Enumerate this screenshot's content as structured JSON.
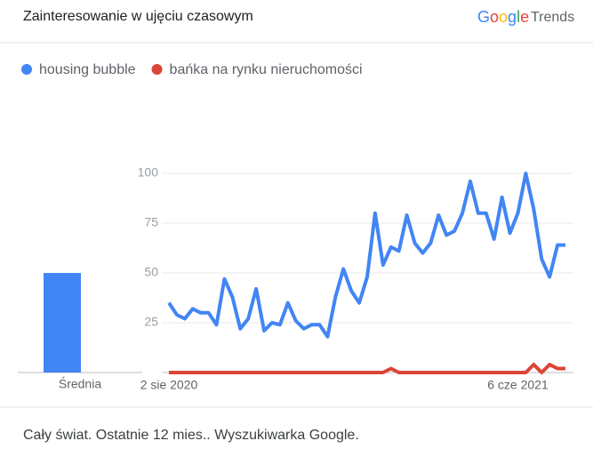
{
  "header": {
    "title": "Zainteresowanie w ujęciu czasowym",
    "brand": "Google",
    "brand_suffix": "Trends"
  },
  "chart_data": {
    "type": "line",
    "categories": [
      "2 sie 2020",
      null,
      null,
      null,
      null,
      null,
      null,
      null,
      null,
      null,
      null,
      null,
      null,
      null,
      null,
      null,
      null,
      null,
      null,
      null,
      null,
      null,
      null,
      null,
      null,
      null,
      null,
      null,
      null,
      null,
      null,
      null,
      null,
      null,
      null,
      null,
      null,
      null,
      null,
      null,
      null,
      null,
      null,
      null,
      "6 cze 2021",
      null,
      null,
      null,
      null,
      null,
      null
    ],
    "series": [
      {
        "name": "housing bubble",
        "color": "#4285f4",
        "average": 50,
        "values": [
          35,
          29,
          27,
          32,
          30,
          30,
          24,
          47,
          38,
          22,
          27,
          42,
          21,
          25,
          24,
          35,
          26,
          22,
          24,
          24,
          18,
          38,
          52,
          41,
          35,
          48,
          80,
          54,
          63,
          61,
          79,
          65,
          60,
          65,
          79,
          69,
          71,
          80,
          96,
          80,
          80,
          67,
          88,
          70,
          80,
          100,
          82,
          57,
          48,
          64,
          64
        ]
      },
      {
        "name": "bańka na rynku nieruchomości",
        "color": "#db4437",
        "average": 0,
        "values": [
          0,
          0,
          0,
          0,
          0,
          0,
          0,
          0,
          0,
          0,
          0,
          0,
          0,
          0,
          0,
          0,
          0,
          0,
          0,
          0,
          0,
          0,
          0,
          0,
          0,
          0,
          0,
          0,
          2,
          0,
          0,
          0,
          0,
          0,
          0,
          0,
          0,
          0,
          0,
          0,
          0,
          0,
          0,
          0,
          0,
          0,
          4,
          0,
          4,
          2,
          2
        ]
      }
    ],
    "average_label": "Średnia",
    "ylim": [
      0,
      100
    ],
    "yticks": [
      25,
      50,
      75,
      100
    ],
    "grid": true
  },
  "footer": {
    "text": "Cały świat. Ostatnie 12 mies.. Wyszukiwarka Google."
  }
}
